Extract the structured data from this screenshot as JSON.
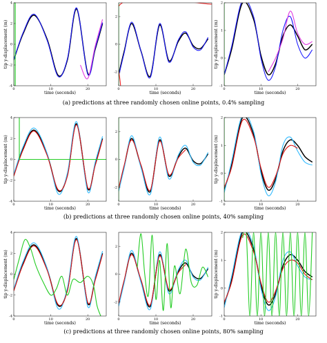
{
  "figure": {
    "rows": [
      {
        "caption": "(a)  predictions at three randomly chosen online points, 0.4% sampling"
      },
      {
        "caption": "(b)  predictions at three randomly chosen online points, 40% sampling"
      },
      {
        "caption": "(c)  predictions at three randomly chosen online points, 80% sampling"
      }
    ]
  },
  "chart_data": [
    {
      "type": "line",
      "row": 0,
      "col": 0,
      "xlabel": "time (seconds)",
      "ylabel": "tip y-displacement (m)",
      "xlim": [
        0,
        25
      ],
      "ylim": [
        -4,
        4
      ],
      "xticks": [
        0,
        10,
        20
      ],
      "yticks": [
        -4,
        -2,
        0,
        2,
        4
      ],
      "series": [
        {
          "color": "#000000",
          "x": [
            0,
            2.5,
            5.5,
            9,
            12,
            14.5,
            17,
            20,
            22,
            24
          ],
          "y": [
            -1.5,
            1,
            2.8,
            0.5,
            -3,
            -1.5,
            3.4,
            -2.8,
            -0.5,
            2
          ]
        },
        {
          "color": "#1a1aff",
          "x": [
            0,
            2.5,
            5.5,
            9,
            12,
            14.5,
            17,
            20,
            22,
            24
          ],
          "y": [
            -1.5,
            1.1,
            2.9,
            0.4,
            -3.1,
            -1.4,
            3.5,
            -2.9,
            -0.4,
            2.1
          ]
        },
        {
          "color": "#e03ce0",
          "x": [
            18,
            20,
            22,
            24
          ],
          "y": [
            -2,
            -3.3,
            -0.2,
            2.4
          ]
        },
        {
          "color": "#22cc22",
          "x": [
            0,
            0,
            0.4,
            0.4
          ],
          "y": [
            -4,
            4,
            4,
            -4
          ]
        }
      ]
    },
    {
      "type": "line",
      "row": 0,
      "col": 1,
      "xlabel": "time (seconds)",
      "ylabel": "",
      "xlim": [
        0,
        25
      ],
      "ylim": [
        -3,
        3
      ],
      "xticks": [
        0,
        10,
        20
      ],
      "yticks": [
        -2,
        0,
        2
      ],
      "series": [
        {
          "color": "#000000",
          "x": [
            0,
            1.5,
            3.5,
            6,
            8.5,
            11,
            13.5,
            16,
            18,
            20,
            22,
            24
          ],
          "y": [
            -2.2,
            -0.5,
            1.5,
            -0.5,
            -2.3,
            1.4,
            -1.2,
            0.2,
            0.8,
            -0.1,
            -0.3,
            0.4
          ]
        },
        {
          "color": "#1a1aff",
          "x": [
            0,
            1.5,
            3.5,
            6,
            8.5,
            11,
            13.5,
            16,
            18,
            20,
            22,
            24
          ],
          "y": [
            -2.3,
            -0.6,
            1.6,
            -0.5,
            -2.4,
            1.5,
            -1.3,
            0.3,
            0.9,
            -0.2,
            -0.4,
            0.5
          ]
        },
        {
          "color": "#ee2222",
          "x": [
            0.5,
            0.5,
            25
          ],
          "y": [
            -3,
            2.9,
            2.9
          ]
        },
        {
          "color": "#22cc22",
          "x": [
            0,
            0
          ],
          "y": [
            -3,
            3
          ]
        }
      ]
    },
    {
      "type": "line",
      "row": 0,
      "col": 2,
      "xlabel": "time (seconds)",
      "ylabel": "tip y-displacement (m)",
      "xlim": [
        0,
        25
      ],
      "ylim": [
        -1,
        2
      ],
      "xticks": [
        0,
        10,
        20
      ],
      "yticks": [
        -1,
        0,
        1,
        2
      ],
      "series": [
        {
          "color": "#000000",
          "x": [
            0,
            2,
            5,
            8,
            10,
            12,
            14,
            16,
            18,
            20,
            22,
            24
          ],
          "y": [
            -0.6,
            0.3,
            2.0,
            1.4,
            0.1,
            -0.6,
            -0.2,
            0.8,
            1.2,
            0.8,
            0.3,
            0.5
          ]
        },
        {
          "color": "#1a1aff",
          "x": [
            0,
            2,
            5,
            8,
            10,
            12,
            14,
            16,
            18,
            20,
            22,
            24
          ],
          "y": [
            -0.6,
            0.4,
            2.1,
            1.5,
            0.0,
            -0.8,
            -0.3,
            1.0,
            1.5,
            0.5,
            0.0,
            0.3
          ]
        },
        {
          "color": "#e03ce0",
          "x": [
            12,
            14,
            16,
            18,
            20,
            22,
            24
          ],
          "y": [
            -0.5,
            0.0,
            0.7,
            1.7,
            0.9,
            0.5,
            0.6
          ]
        },
        {
          "color": "#22cc22",
          "x": [
            0,
            0
          ],
          "y": [
            -1,
            2
          ]
        }
      ]
    },
    {
      "type": "line",
      "row": 1,
      "col": 0,
      "xlabel": "time (seconds)",
      "ylabel": "tip y-displacement (m)",
      "xlim": [
        0,
        25
      ],
      "ylim": [
        -4,
        4
      ],
      "xticks": [
        0,
        10,
        20
      ],
      "yticks": [
        -4,
        -2,
        0,
        2,
        4
      ],
      "series": [
        {
          "color": "#000000",
          "x": [
            0,
            2.5,
            5.5,
            9,
            12,
            14.5,
            17,
            20,
            22,
            24
          ],
          "y": [
            -1.5,
            1,
            2.8,
            0.5,
            -3,
            -1.5,
            3.4,
            -2.8,
            -0.5,
            2
          ]
        },
        {
          "color": "#33bbff",
          "x": [
            0,
            2.5,
            5.5,
            9,
            12,
            14.5,
            17,
            20,
            22,
            24
          ],
          "y": [
            -1.4,
            1.2,
            3.0,
            0.6,
            -3.3,
            -1.3,
            3.6,
            -3.1,
            -0.3,
            2.2
          ]
        },
        {
          "color": "#dd1111",
          "x": [
            0,
            2.5,
            5.5,
            9,
            12,
            14.5,
            17,
            20,
            22,
            24
          ],
          "y": [
            -1.6,
            0.9,
            2.7,
            0.4,
            -2.9,
            -1.6,
            3.3,
            -2.7,
            -0.6,
            1.9
          ]
        },
        {
          "color": "#22cc22",
          "x": [
            1.5,
            1.5,
            25
          ],
          "y": [
            4,
            0,
            0
          ]
        }
      ]
    },
    {
      "type": "line",
      "row": 1,
      "col": 1,
      "xlabel": "time (seconds)",
      "ylabel": "",
      "xlim": [
        0,
        25
      ],
      "ylim": [
        -3,
        3
      ],
      "xticks": [
        0,
        10,
        20
      ],
      "yticks": [
        -2,
        0,
        2
      ],
      "series": [
        {
          "color": "#000000",
          "x": [
            0,
            1.5,
            3.5,
            6,
            8.5,
            11,
            13.5,
            16,
            18,
            20,
            22,
            24
          ],
          "y": [
            -2.2,
            -0.5,
            1.5,
            -0.5,
            -2.3,
            1.4,
            -1.2,
            0.2,
            0.8,
            -0.1,
            -0.3,
            0.4
          ]
        },
        {
          "color": "#33bbff",
          "x": [
            0,
            1.5,
            3.5,
            6,
            8.5,
            11,
            13.5,
            16,
            18,
            20,
            22,
            24
          ],
          "y": [
            -2.3,
            -0.6,
            1.7,
            -0.6,
            -2.5,
            1.6,
            -1.4,
            0.3,
            1.0,
            -0.2,
            -0.4,
            0.5
          ]
        },
        {
          "color": "#dd1111",
          "x": [
            0,
            1.5,
            3.5,
            6,
            8.5,
            11,
            13.5,
            16,
            18
          ],
          "y": [
            -2.1,
            -0.4,
            1.4,
            -0.4,
            -2.2,
            1.3,
            -1.1,
            0.1,
            0.7
          ]
        },
        {
          "color": "#22cc22",
          "x": [
            0,
            0
          ],
          "y": [
            -3,
            3
          ]
        }
      ]
    },
    {
      "type": "line",
      "row": 1,
      "col": 2,
      "xlabel": "time (seconds)",
      "ylabel": "tip y-displacement (m)",
      "xlim": [
        0,
        25
      ],
      "ylim": [
        -1,
        2
      ],
      "xticks": [
        0,
        10,
        20
      ],
      "yticks": [
        -1,
        0,
        1,
        2
      ],
      "series": [
        {
          "color": "#000000",
          "x": [
            0,
            2,
            5,
            8,
            10,
            12,
            14,
            16,
            18,
            20,
            22,
            24
          ],
          "y": [
            -0.6,
            0.3,
            2.0,
            1.4,
            0.1,
            -0.6,
            -0.2,
            0.8,
            1.2,
            1.0,
            0.6,
            0.4
          ]
        },
        {
          "color": "#33bbff",
          "x": [
            0,
            2,
            5,
            8,
            10,
            12,
            14,
            16,
            18,
            20,
            22,
            24
          ],
          "y": [
            -0.7,
            0.4,
            2.1,
            1.5,
            0.0,
            -0.8,
            -0.3,
            1.0,
            1.3,
            0.8,
            0.4,
            0.3
          ]
        },
        {
          "color": "#dd1111",
          "x": [
            0,
            2,
            5,
            8,
            10,
            12,
            14,
            16,
            18,
            20
          ],
          "y": [
            -0.5,
            0.2,
            1.9,
            1.3,
            0.2,
            -0.5,
            -0.1,
            0.7,
            1.0,
            0.9
          ]
        },
        {
          "color": "#22cc22",
          "x": [
            0,
            0
          ],
          "y": [
            -1,
            2
          ]
        }
      ]
    },
    {
      "type": "line",
      "row": 2,
      "col": 0,
      "xlabel": "time (seconds)",
      "ylabel": "tip y-displacement (m)",
      "xlim": [
        0,
        25
      ],
      "ylim": [
        -4,
        4
      ],
      "xticks": [
        0,
        10,
        20
      ],
      "yticks": [
        -4,
        -2,
        0,
        2,
        4
      ],
      "series": [
        {
          "color": "#000000",
          "x": [
            0,
            2.5,
            5.5,
            9,
            12,
            14.5,
            17,
            20,
            22,
            24
          ],
          "y": [
            -1.5,
            1,
            2.8,
            0.5,
            -3,
            -1.5,
            3.4,
            -2.8,
            -0.5,
            2
          ]
        },
        {
          "color": "#33bbff",
          "x": [
            0,
            2.5,
            5.5,
            9,
            12,
            14.5,
            17,
            20,
            22,
            24
          ],
          "y": [
            -1.4,
            1.2,
            3.0,
            0.6,
            -3.3,
            -1.3,
            3.6,
            -3.1,
            -0.3,
            2.2
          ]
        },
        {
          "color": "#dd1111",
          "x": [
            0,
            2.5,
            5.5,
            9,
            12,
            14.5,
            17,
            20,
            22,
            24
          ],
          "y": [
            -1.6,
            0.9,
            2.7,
            0.4,
            -2.9,
            -1.6,
            3.3,
            -2.7,
            -0.6,
            1.9
          ]
        },
        {
          "color": "#22cc22",
          "x": [
            0,
            1.5,
            3,
            4.5,
            6,
            8,
            10,
            11.5,
            13,
            14.5,
            16,
            18,
            20,
            21.5,
            22.5,
            23.5
          ],
          "y": [
            -0.5,
            1.5,
            3.3,
            2.5,
            0.8,
            -0.8,
            -2.0,
            -1.4,
            -0.2,
            -2.0,
            -0.5,
            -0.8,
            -0.2,
            -1.0,
            -3.0,
            -4.0
          ]
        }
      ]
    },
    {
      "type": "line",
      "row": 2,
      "col": 1,
      "xlabel": "time (seconds)",
      "ylabel": "",
      "xlim": [
        0,
        25
      ],
      "ylim": [
        -3,
        3
      ],
      "xticks": [
        0,
        10,
        20
      ],
      "yticks": [
        -2,
        0,
        2
      ],
      "series": [
        {
          "color": "#000000",
          "x": [
            0,
            1.5,
            3.5,
            6,
            8.5,
            11,
            13.5,
            16,
            18,
            20,
            22,
            24
          ],
          "y": [
            -2.2,
            -0.5,
            1.5,
            -0.5,
            -2.3,
            1.4,
            -1.2,
            0.2,
            0.8,
            -0.1,
            -0.3,
            0.4
          ]
        },
        {
          "color": "#33bbff",
          "x": [
            0,
            1.5,
            3.5,
            6,
            8.5,
            11,
            13.5,
            16,
            18,
            20,
            22,
            24
          ],
          "y": [
            -2.3,
            -0.6,
            1.7,
            -0.6,
            -2.5,
            1.6,
            -1.4,
            0.3,
            1.0,
            -0.2,
            -0.4,
            0.5
          ]
        },
        {
          "color": "#dd1111",
          "x": [
            0,
            1.5,
            3.5,
            6,
            8.5,
            11,
            13.5,
            16,
            18
          ],
          "y": [
            -2.1,
            -0.4,
            1.4,
            -0.4,
            -2.2,
            1.3,
            -1.1,
            0.1,
            0.7
          ]
        },
        {
          "color": "#22cc22",
          "x": [
            5,
            6,
            7,
            8,
            9,
            10,
            11,
            12,
            13,
            14,
            15,
            16.5,
            18,
            19.5,
            21,
            22.5,
            24
          ],
          "y": [
            0.5,
            2.9,
            0.0,
            -1.5,
            2.8,
            -1.8,
            1.0,
            -2.6,
            2.2,
            -2.4,
            0.6,
            -1.4,
            1.8,
            -0.6,
            -0.8,
            0.5,
            -0.2
          ]
        }
      ]
    },
    {
      "type": "line",
      "row": 2,
      "col": 2,
      "xlabel": "time (seconds)",
      "ylabel": "tip y-displacement (m)",
      "xlim": [
        0,
        25
      ],
      "ylim": [
        -1,
        2
      ],
      "xticks": [
        0,
        10,
        20
      ],
      "yticks": [
        -1,
        0,
        1,
        2
      ],
      "series": [
        {
          "color": "#000000",
          "x": [
            0,
            2,
            5,
            8,
            10,
            12,
            14,
            16,
            18,
            20,
            22,
            24
          ],
          "y": [
            -0.6,
            0.3,
            2.0,
            1.4,
            0.1,
            -0.6,
            -0.2,
            0.8,
            1.2,
            1.0,
            0.6,
            0.4
          ]
        },
        {
          "color": "#33bbff",
          "x": [
            0,
            2,
            5,
            8,
            10,
            12,
            14,
            16,
            18,
            20,
            22,
            24
          ],
          "y": [
            -0.7,
            0.4,
            2.1,
            1.5,
            0.0,
            -0.8,
            -0.3,
            1.0,
            1.3,
            0.8,
            0.4,
            0.3
          ]
        },
        {
          "color": "#dd1111",
          "x": [
            0,
            2,
            5,
            8,
            10,
            12,
            14,
            16,
            18,
            20,
            22,
            24
          ],
          "y": [
            -0.5,
            0.2,
            1.9,
            1.3,
            0.2,
            -0.5,
            -0.1,
            0.7,
            1.0,
            0.9,
            0.5,
            0.3
          ]
        },
        {
          "color": "#22cc22",
          "x": [
            5,
            6,
            7,
            8,
            9,
            10,
            11,
            12,
            13,
            14,
            15,
            16,
            17,
            18,
            19,
            20,
            21,
            22,
            23,
            24
          ],
          "y": [
            1.8,
            2.0,
            -1.0,
            2.0,
            -1.0,
            2.0,
            -1.0,
            2.0,
            -1.0,
            2.0,
            -1.0,
            2.0,
            -1.0,
            2.0,
            -1.0,
            2.0,
            -1.0,
            2.0,
            -1.0,
            2.0
          ]
        }
      ]
    }
  ]
}
